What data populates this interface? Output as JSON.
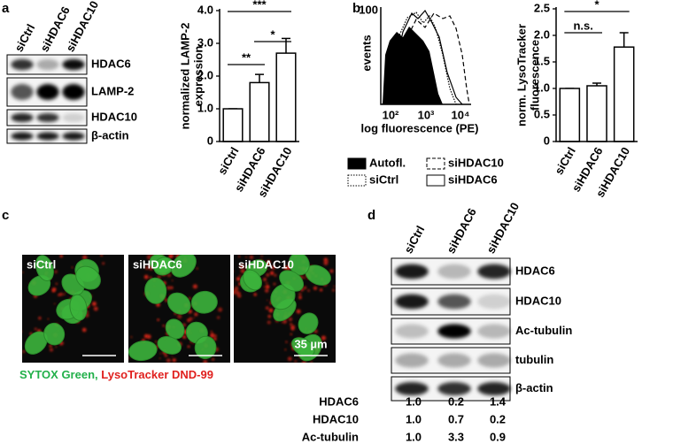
{
  "panel_labels": [
    "a",
    "b",
    "c",
    "d"
  ],
  "blot_a": {
    "lanes": [
      "siCtrl",
      "siHDAC6",
      "siHDAC10"
    ],
    "rows": [
      "HDAC6",
      "LAMP-2",
      "HDAC10",
      "β-actin"
    ]
  },
  "chart_data": [
    {
      "type": "bar",
      "y_label": [
        "normalized LAMP-2",
        "expression"
      ],
      "categories": [
        "siCtrl",
        "siHDAC6",
        "siHDAC10"
      ],
      "values": [
        1.0,
        1.8,
        2.7
      ],
      "errors": [
        0,
        0.25,
        0.45
      ],
      "color": "#ffffff",
      "ylim": [
        0,
        4
      ],
      "yticks": [
        0,
        {
          "value": 1,
          "label": "1.0"
        },
        {
          "value": 2,
          "label": "2.0"
        },
        {
          "value": 3,
          "label": "3.0"
        },
        {
          "value": 4,
          "label": "4.0"
        }
      ],
      "significance": [
        {
          "pair": [
            0,
            1
          ],
          "label": "**"
        },
        {
          "pair": [
            0,
            2
          ],
          "label": "***"
        },
        {
          "pair": [
            1,
            2
          ],
          "label": "*"
        }
      ]
    },
    {
      "type": "bar",
      "y_label": [
        "norm. LysoTracker",
        "fluorescence"
      ],
      "categories": [
        "siCtrl",
        "siHDAC6",
        "siHDAC10"
      ],
      "values": [
        1.0,
        1.05,
        1.78
      ],
      "errors": [
        0,
        0.05,
        0.27
      ],
      "color": "#ffffff",
      "ylim": [
        0,
        2.5
      ],
      "yticks": [
        0,
        0.5,
        {
          "value": 1,
          "label": "1.0"
        },
        1.5,
        {
          "value": 2,
          "label": "2.0"
        },
        2.5
      ],
      "significance": [
        {
          "pair": [
            0,
            1
          ],
          "label": "n.s."
        },
        {
          "pair": [
            0,
            2
          ],
          "label": "*"
        }
      ]
    }
  ],
  "flow_b": {
    "y_label": "events",
    "x_label": "log fluorescence (PE)",
    "y_tick": "100",
    "x_ticks": [
      "10²",
      "10³",
      "10⁴"
    ],
    "legend": [
      "Autofl.",
      "siHDAC10",
      "siCtrl",
      "siHDAC6"
    ]
  },
  "microscopy_c": {
    "images": [
      "siCtrl",
      "siHDAC6",
      "siHDAC10"
    ],
    "scale_bar": "35 µm",
    "stain_green": "SYTOX Green,",
    "stain_red": "LysoTracker DND-99"
  },
  "blot_d": {
    "lanes": [
      "siCtrl",
      "siHDAC6",
      "siHDAC10"
    ],
    "rows": [
      "HDAC6",
      "HDAC10",
      "Ac-tubulin",
      "tubulin",
      "β-actin"
    ],
    "quantification": [
      {
        "label": "HDAC6",
        "values": [
          "1.0",
          "0.2",
          "1.4"
        ]
      },
      {
        "label": "HDAC10",
        "values": [
          "1.0",
          "0.7",
          "0.2"
        ]
      },
      {
        "label": "Ac-tubulin",
        "values": [
          "1.0",
          "3.3",
          "0.9"
        ]
      }
    ]
  }
}
